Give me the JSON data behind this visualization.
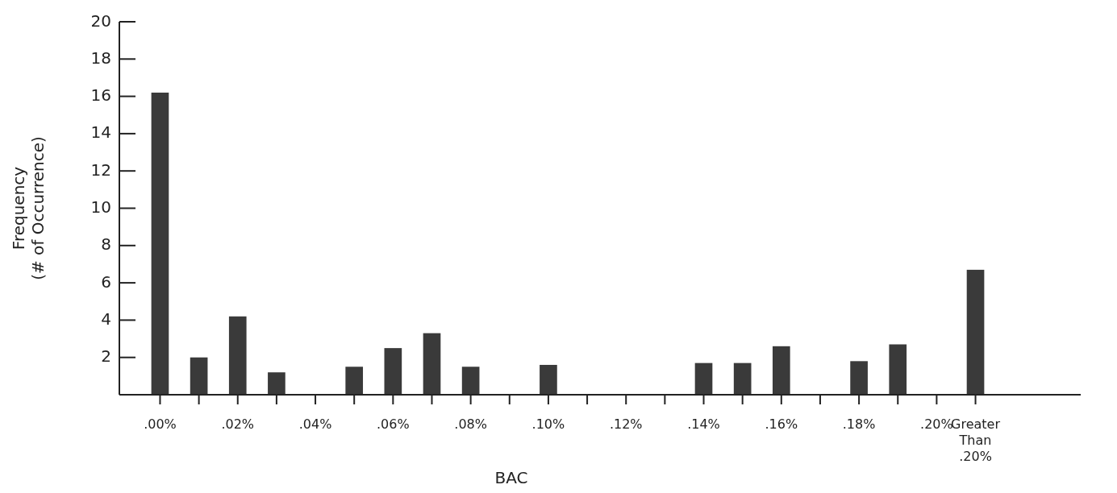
{
  "chart_data": {
    "type": "bar",
    "xlabel": "BAC",
    "ylabel": "Frequency\n(# of Occurrence)",
    "categories": [
      ".00%",
      null,
      ".02%",
      null,
      ".04%",
      null,
      ".06%",
      null,
      ".08%",
      null,
      ".10%",
      null,
      ".12%",
      null,
      ".14%",
      null,
      ".16%",
      null,
      ".18%",
      null,
      ".20%",
      "Greater Than\n.20%"
    ],
    "values": [
      16.2,
      2.0,
      4.2,
      1.2,
      0,
      1.5,
      2.5,
      3.3,
      1.5,
      0,
      1.6,
      0,
      0,
      0,
      1.7,
      1.7,
      2.6,
      0,
      1.8,
      2.7,
      0,
      6.7
    ],
    "color": "#3a3a3a",
    "ylim": [
      0,
      20
    ],
    "yticks": [
      2,
      4,
      6,
      8,
      10,
      12,
      14,
      16,
      18,
      20
    ],
    "grid": false,
    "legend": false
  }
}
